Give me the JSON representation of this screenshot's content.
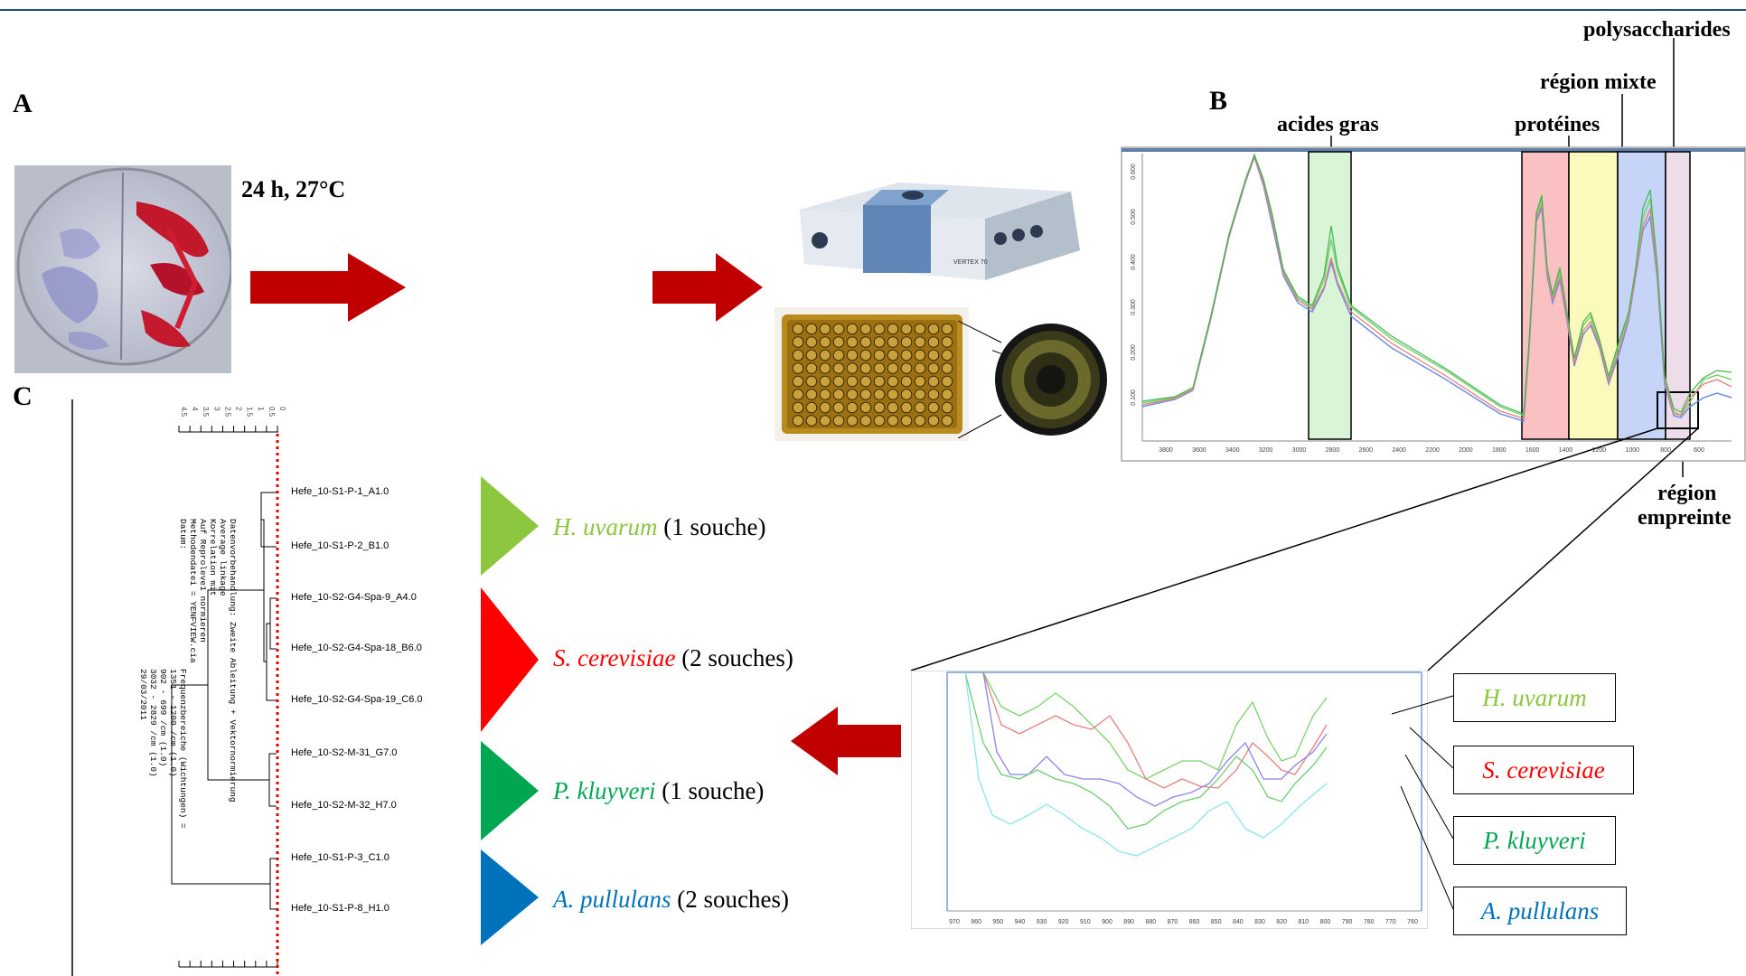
{
  "panels": {
    "a": "A",
    "b": "B",
    "c": "C"
  },
  "culture_condition": "24 h, 27°C",
  "spectrum_regions": {
    "fatty_acids": "acides gras",
    "proteins": "protéines",
    "mixed": "région mixte",
    "polysaccharides": "polysaccharides",
    "fingerprint_line1": "région",
    "fingerprint_line2": "empreinte"
  },
  "spectrum_axis": {
    "x_ticks": [
      "3800",
      "3600",
      "3400",
      "3200",
      "3000",
      "2800",
      "2600",
      "2400",
      "2200",
      "2000",
      "1800",
      "1600",
      "1400",
      "1200",
      "1000",
      "800",
      "600"
    ],
    "y_ticks": [
      "0.100",
      "0.200",
      "0.300",
      "0.400",
      "0.500",
      "0.600"
    ]
  },
  "zoom_axis": {
    "x_ticks": [
      "970",
      "960",
      "950",
      "940",
      "930",
      "920",
      "910",
      "900",
      "890",
      "880",
      "870",
      "860",
      "850",
      "840",
      "830",
      "820",
      "810",
      "800",
      "790",
      "780",
      "770",
      "760"
    ]
  },
  "instrument_label": "VERTEX 70",
  "dendrogram": {
    "leaves": [
      "Hefe_10-S1-P-1_A1.0",
      "Hefe_10-S1-P-2_B1.0",
      "Hefe_10-S2-G4-Spa-9_A4.0",
      "Hefe_10-S2-G4-Spa-18_B6.0",
      "Hefe_10-S2-G4-Spa-19_C6.0",
      "Hefe_10-S2-M-31_G7.0",
      "Hefe_10-S2-M-32_H7.0",
      "Hefe_10-S1-P-3_C1.0",
      "Hefe_10-S1-P-8_H1.0"
    ],
    "scale_ticks": [
      "4.5",
      "4",
      "3.5",
      "3",
      "2.5",
      "2",
      "1.5",
      "1",
      "0.5",
      "0"
    ],
    "info_lines": [
      "Datenvorbehandlung: Zweite Ableitung + Vektornormierung",
      "Average linkage",
      "Korrelation mit",
      "Auf Reproleve1 normieren",
      "Methodendatei = YENFVIEW.cia",
      "Datum:"
    ],
    "info_values": [
      "Frequenzbereiche (Wichtungen) =",
      "1351 - 1200 /cm (1.0)",
      "902 - 699 /cm (1.0)",
      "3032 - 2829 /cm (1.0)",
      "29/03/2011"
    ]
  },
  "species_groups": [
    {
      "name": "H. uvarum",
      "count": "(1 souche)",
      "color": "#8dc63f"
    },
    {
      "name": "S. cerevisiae",
      "count": "(2 souches)",
      "color": "#ff0000"
    },
    {
      "name": "P. kluyveri",
      "count": "(1 souche)",
      "color": "#00a651"
    },
    {
      "name": "A. pullulans",
      "count": "(2 souches)",
      "color": "#0072bc"
    }
  ],
  "zoom_legend": [
    {
      "name": "H. uvarum",
      "color": "#8dc63f"
    },
    {
      "name": "S. cerevisiae",
      "color": "#ff0000"
    },
    {
      "name": "P. kluyveri",
      "color": "#00a651"
    },
    {
      "name": "A. pullulans",
      "color": "#0072bc"
    }
  ],
  "colors": {
    "arrow": "#c00000",
    "top_rule": "#1f4e79"
  }
}
